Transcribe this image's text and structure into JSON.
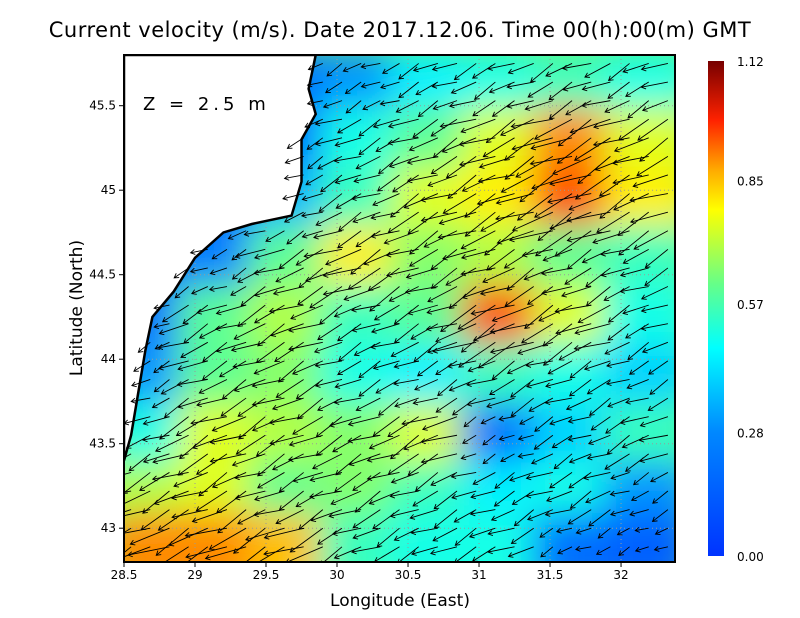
{
  "chart_data": {
    "type": "heatmap",
    "title": "Current velocity (m/s). Date 2017.12.06. Time 00(h):00(m) GMT",
    "annotation": "Z = 2.5 m",
    "xlabel": "Longitude (East)",
    "ylabel": "Latitude (North)",
    "xlim": [
      28.5,
      32.38
    ],
    "ylim": [
      42.8,
      45.8
    ],
    "xticks": [
      "28.5",
      "29",
      "29.5",
      "30",
      "30.5",
      "31",
      "31.5",
      "32"
    ],
    "xtick_values": [
      28.5,
      29,
      29.5,
      30,
      30.5,
      31,
      31.5,
      32
    ],
    "yticks": [
      "43",
      "43.5",
      "44",
      "44.5",
      "45",
      "45.5"
    ],
    "ytick_values": [
      43,
      43.5,
      44,
      44.5,
      45,
      45.5
    ],
    "grid": true,
    "colorbar": {
      "min": 0,
      "max": 1.12,
      "labels": [
        "1.12",
        "0.85",
        "0.57",
        "0.28",
        "0.00"
      ],
      "label_values": [
        1.12,
        0.85,
        0.57,
        0.28,
        0.0
      ],
      "placement": "right"
    },
    "grid_lats": [
      45.6,
      45.25,
      44.9,
      44.55,
      44.2,
      43.85,
      43.5,
      43.15,
      42.85
    ],
    "grid_lons": [
      28.7,
      29.2,
      29.7,
      30.2,
      30.7,
      31.2,
      31.7,
      32.2
    ],
    "speed": [
      [
        null,
        null,
        0.2,
        0.3,
        0.45,
        0.5,
        0.55,
        0.5
      ],
      [
        null,
        null,
        null,
        0.5,
        0.6,
        0.75,
        0.9,
        0.75
      ],
      [
        null,
        null,
        0.35,
        0.55,
        0.75,
        0.8,
        0.95,
        0.8
      ],
      [
        0.2,
        0.25,
        0.6,
        0.8,
        0.65,
        0.7,
        0.6,
        0.55
      ],
      [
        0.2,
        0.6,
        0.7,
        0.55,
        0.6,
        0.95,
        0.75,
        0.5
      ],
      [
        0.3,
        0.6,
        0.65,
        0.5,
        0.45,
        0.55,
        0.5,
        0.4
      ],
      [
        0.5,
        0.75,
        0.7,
        0.65,
        0.75,
        0.2,
        0.4,
        0.55
      ],
      [
        0.7,
        0.75,
        0.6,
        0.65,
        0.55,
        0.45,
        0.5,
        0.3
      ],
      [
        0.9,
        0.9,
        0.85,
        0.55,
        0.5,
        0.5,
        0.2,
        0.15
      ]
    ],
    "mean_direction_deg": 205,
    "coastline": [
      [
        29.85,
        45.8
      ],
      [
        29.8,
        45.6
      ],
      [
        29.85,
        45.45
      ],
      [
        29.75,
        45.3
      ],
      [
        29.75,
        45.05
      ],
      [
        29.68,
        44.85
      ],
      [
        29.4,
        44.8
      ],
      [
        29.2,
        44.75
      ],
      [
        29.0,
        44.6
      ],
      [
        28.85,
        44.4
      ],
      [
        28.7,
        44.25
      ],
      [
        28.65,
        44.05
      ],
      [
        28.6,
        43.8
      ],
      [
        28.55,
        43.55
      ],
      [
        28.5,
        43.4
      ],
      [
        28.5,
        45.8
      ]
    ]
  }
}
